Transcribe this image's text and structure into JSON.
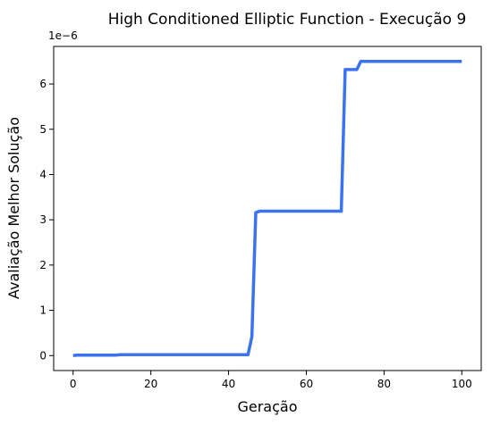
{
  "chart_data": {
    "type": "line",
    "title": "High Conditioned Elliptic Function - Execução 9",
    "xlabel": "Geração",
    "ylabel": "Avaliação Melhor Solução",
    "y_offset_label": "1e−6",
    "xlim": [
      -5,
      105
    ],
    "ylim": [
      -0.33,
      6.83
    ],
    "xticks": [
      0,
      20,
      40,
      60,
      80,
      100
    ],
    "yticks": [
      0,
      1,
      2,
      3,
      4,
      5,
      6
    ],
    "grid": false,
    "line_color": "#3a72f0",
    "series": [
      {
        "x": [
          0,
          1,
          11,
          12,
          45,
          46,
          47,
          48,
          69,
          70,
          73,
          74,
          100
        ],
        "y": [
          0.0,
          0.01,
          0.01,
          0.02,
          0.02,
          0.42,
          3.16,
          3.19,
          3.19,
          6.32,
          6.32,
          6.5,
          6.5
        ]
      }
    ]
  }
}
